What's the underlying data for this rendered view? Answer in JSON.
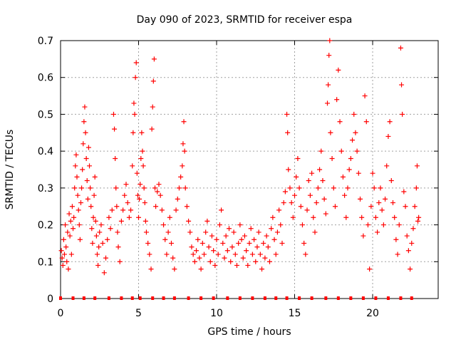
{
  "chart_data": {
    "type": "scatter",
    "title": "Day 090 of 2023, SRMTID for receiver espa",
    "xlabel": "GPS time / hours",
    "ylabel": "SRMTID / TECUs",
    "xlim": [
      0,
      24.2
    ],
    "ylim": [
      0,
      0.7
    ],
    "x_ticks": [
      0,
      5,
      10,
      15,
      20
    ],
    "y_ticks": [
      0,
      0.1,
      0.2,
      0.3,
      0.4,
      0.5,
      0.6,
      0.7
    ],
    "x_tick_labels": [
      "0",
      "5",
      "10",
      "15",
      "20"
    ],
    "y_tick_labels": [
      "0",
      "0.1",
      "0.2",
      "0.3",
      "0.4",
      "0.5",
      "0.6",
      "0.7"
    ],
    "grid": true,
    "marker": "plus",
    "series_color": "#ff0000",
    "series": [
      {
        "name": "SRMTID",
        "points": [
          [
            0.05,
            0.13
          ],
          [
            0.1,
            0.11
          ],
          [
            0.15,
            0.09
          ],
          [
            0.2,
            0.16
          ],
          [
            0.25,
            0.12
          ],
          [
            0.3,
            0.2
          ],
          [
            0.35,
            0.14
          ],
          [
            0.4,
            0.1
          ],
          [
            0.45,
            0.18
          ],
          [
            0.5,
            0.08
          ],
          [
            0.55,
            0.23
          ],
          [
            0.6,
            0.17
          ],
          [
            0.65,
            0.21
          ],
          [
            0.7,
            0.12
          ],
          [
            0.75,
            0.25
          ],
          [
            0.8,
            0.19
          ],
          [
            0.85,
            0.22
          ],
          [
            0.9,
            0.3
          ],
          [
            0.95,
            0.36
          ],
          [
            1.0,
            0.39
          ],
          [
            1.05,
            0.33
          ],
          [
            1.1,
            0.28
          ],
          [
            1.15,
            0.24
          ],
          [
            1.2,
            0.2
          ],
          [
            1.25,
            0.16
          ],
          [
            1.3,
            0.26
          ],
          [
            1.35,
            0.3
          ],
          [
            1.4,
            0.35
          ],
          [
            1.45,
            0.42
          ],
          [
            1.5,
            0.48
          ],
          [
            1.55,
            0.52
          ],
          [
            1.6,
            0.45
          ],
          [
            1.65,
            0.38
          ],
          [
            1.7,
            0.32
          ],
          [
            1.75,
            0.27
          ],
          [
            1.8,
            0.41
          ],
          [
            1.85,
            0.36
          ],
          [
            1.9,
            0.3
          ],
          [
            1.95,
            0.25
          ],
          [
            2.0,
            0.19
          ],
          [
            2.05,
            0.15
          ],
          [
            2.1,
            0.22
          ],
          [
            2.15,
            0.28
          ],
          [
            2.2,
            0.33
          ],
          [
            2.25,
            0.21
          ],
          [
            2.3,
            0.17
          ],
          [
            2.35,
            0.12
          ],
          [
            2.4,
            0.09
          ],
          [
            2.45,
            0.14
          ],
          [
            2.5,
            0.18
          ],
          [
            2.6,
            0.2
          ],
          [
            2.7,
            0.15
          ],
          [
            2.8,
            0.07
          ],
          [
            2.9,
            0.11
          ],
          [
            3.0,
            0.16
          ],
          [
            3.1,
            0.22
          ],
          [
            3.2,
            0.19
          ],
          [
            3.3,
            0.24
          ],
          [
            3.4,
            0.5
          ],
          [
            3.45,
            0.46
          ],
          [
            3.5,
            0.38
          ],
          [
            3.55,
            0.3
          ],
          [
            3.6,
            0.25
          ],
          [
            3.65,
            0.18
          ],
          [
            3.7,
            0.14
          ],
          [
            3.8,
            0.1
          ],
          [
            3.9,
            0.21
          ],
          [
            4.0,
            0.24
          ],
          [
            4.1,
            0.28
          ],
          [
            4.2,
            0.31
          ],
          [
            4.3,
            0.26
          ],
          [
            4.4,
            0.22
          ],
          [
            4.5,
            0.24
          ],
          [
            4.6,
            0.36
          ],
          [
            4.65,
            0.45
          ],
          [
            4.7,
            0.53
          ],
          [
            4.75,
            0.5
          ],
          [
            4.8,
            0.6
          ],
          [
            4.85,
            0.64
          ],
          [
            4.9,
            0.34
          ],
          [
            4.95,
            0.28
          ],
          [
            5.0,
            0.22
          ],
          [
            5.05,
            0.27
          ],
          [
            5.1,
            0.31
          ],
          [
            5.15,
            0.38
          ],
          [
            5.2,
            0.45
          ],
          [
            5.25,
            0.4
          ],
          [
            5.3,
            0.36
          ],
          [
            5.35,
            0.3
          ],
          [
            5.4,
            0.26
          ],
          [
            5.45,
            0.21
          ],
          [
            5.5,
            0.18
          ],
          [
            5.6,
            0.15
          ],
          [
            5.7,
            0.12
          ],
          [
            5.8,
            0.08
          ],
          [
            5.85,
            0.46
          ],
          [
            5.9,
            0.52
          ],
          [
            5.95,
            0.59
          ],
          [
            6.0,
            0.65
          ],
          [
            6.05,
            0.3
          ],
          [
            6.1,
            0.25
          ],
          [
            6.2,
            0.29
          ],
          [
            6.3,
            0.31
          ],
          [
            6.4,
            0.28
          ],
          [
            6.5,
            0.24
          ],
          [
            6.6,
            0.2
          ],
          [
            6.7,
            0.16
          ],
          [
            6.8,
            0.12
          ],
          [
            6.9,
            0.18
          ],
          [
            7.0,
            0.22
          ],
          [
            7.1,
            0.15
          ],
          [
            7.2,
            0.11
          ],
          [
            7.3,
            0.08
          ],
          [
            7.4,
            0.24
          ],
          [
            7.5,
            0.27
          ],
          [
            7.6,
            0.3
          ],
          [
            7.7,
            0.33
          ],
          [
            7.8,
            0.36
          ],
          [
            7.85,
            0.42
          ],
          [
            7.9,
            0.48
          ],
          [
            7.95,
            0.4
          ],
          [
            8.0,
            0.3
          ],
          [
            8.1,
            0.25
          ],
          [
            8.2,
            0.21
          ],
          [
            8.3,
            0.18
          ],
          [
            8.4,
            0.14
          ],
          [
            8.5,
            0.12
          ],
          [
            8.6,
            0.1
          ],
          [
            8.7,
            0.13
          ],
          [
            8.8,
            0.16
          ],
          [
            8.9,
            0.11
          ],
          [
            9.0,
            0.08
          ],
          [
            9.1,
            0.15
          ],
          [
            9.2,
            0.12
          ],
          [
            9.3,
            0.18
          ],
          [
            9.4,
            0.21
          ],
          [
            9.5,
            0.14
          ],
          [
            9.6,
            0.1
          ],
          [
            9.7,
            0.17
          ],
          [
            9.8,
            0.13
          ],
          [
            9.9,
            0.09
          ],
          [
            10.0,
            0.16
          ],
          [
            10.1,
            0.12
          ],
          [
            10.2,
            0.2
          ],
          [
            10.3,
            0.24
          ],
          [
            10.4,
            0.15
          ],
          [
            10.5,
            0.11
          ],
          [
            10.6,
            0.17
          ],
          [
            10.7,
            0.13
          ],
          [
            10.8,
            0.19
          ],
          [
            10.9,
            0.1
          ],
          [
            11.0,
            0.14
          ],
          [
            11.1,
            0.18
          ],
          [
            11.2,
            0.12
          ],
          [
            11.3,
            0.09
          ],
          [
            11.4,
            0.15
          ],
          [
            11.5,
            0.2
          ],
          [
            11.6,
            0.16
          ],
          [
            11.7,
            0.11
          ],
          [
            11.8,
            0.17
          ],
          [
            11.9,
            0.13
          ],
          [
            12.0,
            0.09
          ],
          [
            12.1,
            0.15
          ],
          [
            12.2,
            0.19
          ],
          [
            12.3,
            0.12
          ],
          [
            12.4,
            0.16
          ],
          [
            12.5,
            0.1
          ],
          [
            12.6,
            0.14
          ],
          [
            12.7,
            0.18
          ],
          [
            12.8,
            0.12
          ],
          [
            12.9,
            0.08
          ],
          [
            13.0,
            0.15
          ],
          [
            13.1,
            0.11
          ],
          [
            13.2,
            0.17
          ],
          [
            13.3,
            0.14
          ],
          [
            13.4,
            0.1
          ],
          [
            13.5,
            0.19
          ],
          [
            13.6,
            0.22
          ],
          [
            13.7,
            0.16
          ],
          [
            13.8,
            0.12
          ],
          [
            13.9,
            0.18
          ],
          [
            14.0,
            0.24
          ],
          [
            14.1,
            0.2
          ],
          [
            14.2,
            0.15
          ],
          [
            14.3,
            0.26
          ],
          [
            14.4,
            0.29
          ],
          [
            14.5,
            0.5
          ],
          [
            14.55,
            0.45
          ],
          [
            14.6,
            0.35
          ],
          [
            14.7,
            0.3
          ],
          [
            14.8,
            0.26
          ],
          [
            14.9,
            0.22
          ],
          [
            15.0,
            0.28
          ],
          [
            15.1,
            0.33
          ],
          [
            15.2,
            0.38
          ],
          [
            15.3,
            0.3
          ],
          [
            15.4,
            0.25
          ],
          [
            15.5,
            0.2
          ],
          [
            15.6,
            0.15
          ],
          [
            15.7,
            0.12
          ],
          [
            15.8,
            0.24
          ],
          [
            15.9,
            0.32
          ],
          [
            16.0,
            0.28
          ],
          [
            16.1,
            0.34
          ],
          [
            16.2,
            0.22
          ],
          [
            16.3,
            0.18
          ],
          [
            16.4,
            0.26
          ],
          [
            16.5,
            0.3
          ],
          [
            16.6,
            0.35
          ],
          [
            16.7,
            0.4
          ],
          [
            16.8,
            0.32
          ],
          [
            16.9,
            0.27
          ],
          [
            17.0,
            0.23
          ],
          [
            17.1,
            0.53
          ],
          [
            17.15,
            0.58
          ],
          [
            17.2,
            0.66
          ],
          [
            17.25,
            0.7
          ],
          [
            17.3,
            0.45
          ],
          [
            17.4,
            0.38
          ],
          [
            17.5,
            0.3
          ],
          [
            17.6,
            0.25
          ],
          [
            17.7,
            0.54
          ],
          [
            17.8,
            0.62
          ],
          [
            17.9,
            0.48
          ],
          [
            18.0,
            0.4
          ],
          [
            18.1,
            0.33
          ],
          [
            18.2,
            0.28
          ],
          [
            18.3,
            0.22
          ],
          [
            18.4,
            0.3
          ],
          [
            18.5,
            0.35
          ],
          [
            18.6,
            0.38
          ],
          [
            18.7,
            0.43
          ],
          [
            18.8,
            0.5
          ],
          [
            18.9,
            0.45
          ],
          [
            19.0,
            0.4
          ],
          [
            19.1,
            0.34
          ],
          [
            19.2,
            0.27
          ],
          [
            19.3,
            0.22
          ],
          [
            19.4,
            0.17
          ],
          [
            19.5,
            0.55
          ],
          [
            19.6,
            0.48
          ],
          [
            19.7,
            0.2
          ],
          [
            19.8,
            0.08
          ],
          [
            19.9,
            0.25
          ],
          [
            20.0,
            0.34
          ],
          [
            20.1,
            0.3
          ],
          [
            20.2,
            0.22
          ],
          [
            20.3,
            0.18
          ],
          [
            20.4,
            0.26
          ],
          [
            20.5,
            0.3
          ],
          [
            20.6,
            0.24
          ],
          [
            20.7,
            0.2
          ],
          [
            20.8,
            0.27
          ],
          [
            20.9,
            0.36
          ],
          [
            21.0,
            0.44
          ],
          [
            21.1,
            0.48
          ],
          [
            21.2,
            0.32
          ],
          [
            21.3,
            0.26
          ],
          [
            21.4,
            0.22
          ],
          [
            21.5,
            0.16
          ],
          [
            21.6,
            0.12
          ],
          [
            21.7,
            0.2
          ],
          [
            21.8,
            0.68
          ],
          [
            21.85,
            0.58
          ],
          [
            21.9,
            0.5
          ],
          [
            22.0,
            0.29
          ],
          [
            22.1,
            0.25
          ],
          [
            22.2,
            0.17
          ],
          [
            22.3,
            0.13
          ],
          [
            22.4,
            0.08
          ],
          [
            22.5,
            0.15
          ],
          [
            22.6,
            0.19
          ],
          [
            22.7,
            0.25
          ],
          [
            22.8,
            0.3
          ],
          [
            22.85,
            0.36
          ],
          [
            22.9,
            0.21
          ],
          [
            22.95,
            0.22
          ]
        ]
      }
    ],
    "baseline_marks_x": [
      0,
      0.8,
      1.5,
      2.2,
      3.1,
      3.9,
      4.6,
      5.1,
      5.9,
      6.6,
      7.3,
      8.2,
      9.0,
      9.8,
      10.7,
      11.5,
      12.3,
      13.1,
      13.8,
      14.5,
      15.3,
      16.1,
      17.0,
      17.8,
      18.6,
      19.4,
      20.2,
      21.0,
      21.8,
      22.5
    ]
  }
}
